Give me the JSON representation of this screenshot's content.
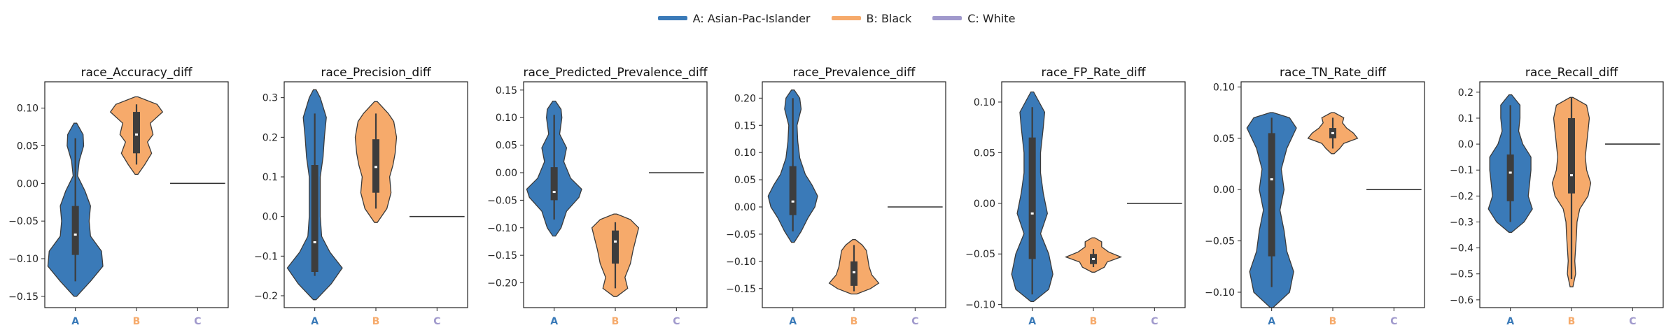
{
  "legend": {
    "entries": [
      {
        "label": "A: Asian-Pac-Islander",
        "color": "#3a7ab8"
      },
      {
        "label": "B: Black",
        "color": "#f6aa6b"
      },
      {
        "label": "C: White",
        "color": "#a099cc"
      }
    ]
  },
  "groups": [
    {
      "key": "A",
      "color": "#3a7ab8"
    },
    {
      "key": "B",
      "color": "#f6aa6b"
    },
    {
      "key": "C",
      "color": "#a099cc"
    }
  ],
  "chart_data": [
    {
      "type": "violin",
      "title": "race_Accuracy_diff",
      "categories": [
        "A",
        "B",
        "C"
      ],
      "ylim": [
        -0.165,
        0.135
      ],
      "yticks": [
        -0.15,
        -0.1,
        -0.05,
        0.0,
        0.05,
        0.1
      ],
      "yticklabels": [
        "−0.15",
        "−0.10",
        "−0.05",
        "0.00",
        "0.05",
        "0.10"
      ],
      "series": [
        {
          "group": "A",
          "min": -0.13,
          "q1": -0.095,
          "median": -0.068,
          "q3": -0.03,
          "max": 0.06,
          "density": [
            [
              -0.15,
              0.05
            ],
            [
              -0.13,
              0.55
            ],
            [
              -0.11,
              1.0
            ],
            [
              -0.09,
              0.95
            ],
            [
              -0.07,
              0.55
            ],
            [
              -0.05,
              0.5
            ],
            [
              -0.03,
              0.55
            ],
            [
              -0.01,
              0.35
            ],
            [
              0.01,
              0.08
            ],
            [
              0.03,
              0.14
            ],
            [
              0.05,
              0.3
            ],
            [
              0.065,
              0.28
            ],
            [
              0.08,
              0.05
            ]
          ]
        },
        {
          "group": "B",
          "min": 0.025,
          "q1": 0.04,
          "median": 0.065,
          "q3": 0.095,
          "max": 0.105,
          "density": [
            [
              0.012,
              0.05
            ],
            [
              0.025,
              0.3
            ],
            [
              0.04,
              0.55
            ],
            [
              0.055,
              0.4
            ],
            [
              0.065,
              0.6
            ],
            [
              0.08,
              0.5
            ],
            [
              0.095,
              0.95
            ],
            [
              0.105,
              0.75
            ],
            [
              0.115,
              0.05
            ]
          ]
        },
        {
          "group": "C",
          "constant": 0.0
        }
      ]
    },
    {
      "type": "violin",
      "title": "race_Precision_diff",
      "categories": [
        "A",
        "B",
        "C"
      ],
      "ylim": [
        -0.23,
        0.34
      ],
      "yticks": [
        -0.2,
        -0.1,
        0.0,
        0.1,
        0.2,
        0.3
      ],
      "yticklabels": [
        "−0.2",
        "−0.1",
        "0.0",
        "0.1",
        "0.2",
        "0.3"
      ],
      "series": [
        {
          "group": "A",
          "min": -0.15,
          "q1": -0.14,
          "median": -0.065,
          "q3": 0.13,
          "max": 0.26,
          "density": [
            [
              -0.21,
              0.05
            ],
            [
              -0.17,
              0.6
            ],
            [
              -0.13,
              1.0
            ],
            [
              -0.09,
              0.55
            ],
            [
              -0.05,
              0.25
            ],
            [
              0.0,
              0.2
            ],
            [
              0.05,
              0.2
            ],
            [
              0.1,
              0.2
            ],
            [
              0.15,
              0.3
            ],
            [
              0.2,
              0.35
            ],
            [
              0.25,
              0.42
            ],
            [
              0.3,
              0.2
            ],
            [
              0.32,
              0.05
            ]
          ]
        },
        {
          "group": "B",
          "min": 0.02,
          "q1": 0.06,
          "median": 0.125,
          "q3": 0.195,
          "max": 0.26,
          "density": [
            [
              -0.015,
              0.05
            ],
            [
              0.02,
              0.4
            ],
            [
              0.06,
              0.55
            ],
            [
              0.1,
              0.5
            ],
            [
              0.13,
              0.62
            ],
            [
              0.16,
              0.7
            ],
            [
              0.2,
              0.75
            ],
            [
              0.24,
              0.65
            ],
            [
              0.26,
              0.45
            ],
            [
              0.29,
              0.05
            ]
          ]
        },
        {
          "group": "C",
          "constant": 0.0
        }
      ]
    },
    {
      "type": "violin",
      "title": "race_Predicted_Prevalence_diff",
      "categories": [
        "A",
        "B",
        "C"
      ],
      "ylim": [
        -0.245,
        0.165
      ],
      "yticks": [
        -0.2,
        -0.15,
        -0.1,
        -0.05,
        0.0,
        0.05,
        0.1,
        0.15
      ],
      "yticklabels": [
        "−0.20",
        "−0.15",
        "−0.10",
        "−0.05",
        "0.00",
        "0.05",
        "0.10",
        "0.15"
      ],
      "series": [
        {
          "group": "A",
          "min": -0.085,
          "q1": -0.05,
          "median": -0.035,
          "q3": 0.01,
          "max": 0.105,
          "density": [
            [
              -0.115,
              0.05
            ],
            [
              -0.1,
              0.25
            ],
            [
              -0.07,
              0.45
            ],
            [
              -0.045,
              0.9
            ],
            [
              -0.03,
              1.0
            ],
            [
              -0.01,
              0.6
            ],
            [
              0.02,
              0.35
            ],
            [
              0.045,
              0.45
            ],
            [
              0.07,
              0.2
            ],
            [
              0.1,
              0.28
            ],
            [
              0.115,
              0.25
            ],
            [
              0.13,
              0.05
            ]
          ]
        },
        {
          "group": "B",
          "min": -0.21,
          "q1": -0.165,
          "median": -0.125,
          "q3": -0.105,
          "max": -0.09,
          "density": [
            [
              -0.225,
              0.05
            ],
            [
              -0.21,
              0.45
            ],
            [
              -0.19,
              0.35
            ],
            [
              -0.165,
              0.55
            ],
            [
              -0.14,
              0.65
            ],
            [
              -0.12,
              0.75
            ],
            [
              -0.1,
              0.85
            ],
            [
              -0.085,
              0.55
            ],
            [
              -0.075,
              0.05
            ]
          ]
        },
        {
          "group": "C",
          "constant": 0.0
        }
      ]
    },
    {
      "type": "violin",
      "title": "race_Prevalence_diff",
      "categories": [
        "A",
        "B",
        "C"
      ],
      "ylim": [
        -0.185,
        0.23
      ],
      "yticks": [
        -0.15,
        -0.1,
        -0.05,
        0.0,
        0.05,
        0.1,
        0.15,
        0.2
      ],
      "yticklabels": [
        "−0.15",
        "−0.10",
        "−0.05",
        "0.00",
        "0.05",
        "0.10",
        "0.15",
        "0.20"
      ],
      "series": [
        {
          "group": "A",
          "min": -0.045,
          "q1": -0.015,
          "median": 0.01,
          "q3": 0.075,
          "max": 0.2,
          "density": [
            [
              -0.065,
              0.05
            ],
            [
              -0.045,
              0.3
            ],
            [
              -0.02,
              0.55
            ],
            [
              0.0,
              0.8
            ],
            [
              0.02,
              0.9
            ],
            [
              0.04,
              0.7
            ],
            [
              0.06,
              0.45
            ],
            [
              0.09,
              0.25
            ],
            [
              0.12,
              0.18
            ],
            [
              0.15,
              0.15
            ],
            [
              0.18,
              0.3
            ],
            [
              0.2,
              0.25
            ],
            [
              0.215,
              0.05
            ]
          ]
        },
        {
          "group": "B",
          "min": -0.155,
          "q1": -0.145,
          "median": -0.12,
          "q3": -0.1,
          "max": -0.07,
          "density": [
            [
              -0.16,
              0.1
            ],
            [
              -0.15,
              0.6
            ],
            [
              -0.14,
              0.9
            ],
            [
              -0.125,
              0.65
            ],
            [
              -0.11,
              0.55
            ],
            [
              -0.095,
              0.5
            ],
            [
              -0.08,
              0.45
            ],
            [
              -0.07,
              0.3
            ],
            [
              -0.06,
              0.05
            ]
          ]
        },
        {
          "group": "C",
          "constant": 0.0
        }
      ]
    },
    {
      "type": "violin",
      "title": "race_FP_Rate_diff",
      "categories": [
        "A",
        "B",
        "C"
      ],
      "ylim": [
        -0.103,
        0.12
      ],
      "yticks": [
        -0.1,
        -0.05,
        0.0,
        0.05,
        0.1
      ],
      "yticklabels": [
        "−0.10",
        "−0.05",
        "0.00",
        "0.05",
        "0.10"
      ],
      "series": [
        {
          "group": "A",
          "min": -0.09,
          "q1": -0.055,
          "median": -0.01,
          "q3": 0.065,
          "max": 0.095,
          "density": [
            [
              -0.097,
              0.05
            ],
            [
              -0.085,
              0.6
            ],
            [
              -0.07,
              0.75
            ],
            [
              -0.05,
              0.6
            ],
            [
              -0.03,
              0.3
            ],
            [
              -0.01,
              0.55
            ],
            [
              0.01,
              0.4
            ],
            [
              0.03,
              0.3
            ],
            [
              0.05,
              0.3
            ],
            [
              0.075,
              0.4
            ],
            [
              0.09,
              0.45
            ],
            [
              0.1,
              0.25
            ],
            [
              0.11,
              0.05
            ]
          ]
        },
        {
          "group": "B",
          "min": -0.063,
          "q1": -0.06,
          "median": -0.055,
          "q3": -0.05,
          "max": -0.045,
          "density": [
            [
              -0.068,
              0.05
            ],
            [
              -0.063,
              0.4
            ],
            [
              -0.058,
              0.5
            ],
            [
              -0.053,
              1.0
            ],
            [
              -0.048,
              0.55
            ],
            [
              -0.043,
              0.3
            ],
            [
              -0.038,
              0.3
            ],
            [
              -0.034,
              0.05
            ]
          ]
        },
        {
          "group": "C",
          "constant": 0.0
        }
      ]
    },
    {
      "type": "violin",
      "title": "race_TN_Rate_diff",
      "categories": [
        "A",
        "B",
        "C"
      ],
      "ylim": [
        -0.115,
        0.105
      ],
      "yticks": [
        -0.1,
        -0.05,
        0.0,
        0.05,
        0.1
      ],
      "yticklabels": [
        "−0.10",
        "−0.05",
        "0.00",
        "0.05",
        "0.10"
      ],
      "series": [
        {
          "group": "A",
          "min": -0.095,
          "q1": -0.065,
          "median": 0.01,
          "q3": 0.055,
          "max": 0.07,
          "density": [
            [
              -0.115,
              0.05
            ],
            [
              -0.1,
              0.65
            ],
            [
              -0.08,
              0.8
            ],
            [
              -0.06,
              0.55
            ],
            [
              -0.04,
              0.45
            ],
            [
              -0.02,
              0.3
            ],
            [
              0.0,
              0.45
            ],
            [
              0.02,
              0.35
            ],
            [
              0.04,
              0.55
            ],
            [
              0.06,
              0.9
            ],
            [
              0.07,
              0.65
            ],
            [
              0.075,
              0.05
            ]
          ]
        },
        {
          "group": "B",
          "min": 0.04,
          "q1": 0.05,
          "median": 0.055,
          "q3": 0.06,
          "max": 0.07,
          "density": [
            [
              0.035,
              0.05
            ],
            [
              0.04,
              0.25
            ],
            [
              0.045,
              0.4
            ],
            [
              0.05,
              0.9
            ],
            [
              0.055,
              0.75
            ],
            [
              0.06,
              0.5
            ],
            [
              0.065,
              0.35
            ],
            [
              0.07,
              0.4
            ],
            [
              0.075,
              0.05
            ]
          ]
        },
        {
          "group": "C",
          "constant": 0.0
        }
      ]
    },
    {
      "type": "violin",
      "title": "race_Recall_diff",
      "categories": [
        "A",
        "B",
        "C"
      ],
      "ylim": [
        -0.63,
        0.24
      ],
      "yticks": [
        -0.6,
        -0.5,
        -0.4,
        -0.3,
        -0.2,
        -0.1,
        0.0,
        0.1,
        0.2
      ],
      "yticklabels": [
        "−0.6",
        "−0.5",
        "−0.4",
        "−0.3",
        "−0.2",
        "−0.1",
        "0.0",
        "0.1",
        "0.2"
      ],
      "series": [
        {
          "group": "A",
          "min": -0.3,
          "q1": -0.22,
          "median": -0.11,
          "q3": -0.04,
          "max": 0.15,
          "density": [
            [
              -0.34,
              0.05
            ],
            [
              -0.3,
              0.5
            ],
            [
              -0.25,
              0.8
            ],
            [
              -0.2,
              0.65
            ],
            [
              -0.15,
              0.7
            ],
            [
              -0.1,
              0.75
            ],
            [
              -0.05,
              0.75
            ],
            [
              0.0,
              0.45
            ],
            [
              0.05,
              0.3
            ],
            [
              0.1,
              0.35
            ],
            [
              0.15,
              0.35
            ],
            [
              0.19,
              0.05
            ]
          ]
        },
        {
          "group": "B",
          "min": -0.52,
          "q1": -0.19,
          "median": -0.12,
          "q3": 0.1,
          "max": 0.18,
          "density": [
            [
              -0.55,
              0.05
            ],
            [
              -0.5,
              0.15
            ],
            [
              -0.45,
              0.12
            ],
            [
              -0.4,
              0.15
            ],
            [
              -0.35,
              0.18
            ],
            [
              -0.3,
              0.2
            ],
            [
              -0.25,
              0.3
            ],
            [
              -0.2,
              0.6
            ],
            [
              -0.15,
              0.7
            ],
            [
              -0.1,
              0.55
            ],
            [
              -0.05,
              0.5
            ],
            [
              0.0,
              0.55
            ],
            [
              0.05,
              0.6
            ],
            [
              0.1,
              0.65
            ],
            [
              0.15,
              0.55
            ],
            [
              0.18,
              0.05
            ]
          ]
        },
        {
          "group": "C",
          "constant": 0.0
        }
      ]
    }
  ]
}
